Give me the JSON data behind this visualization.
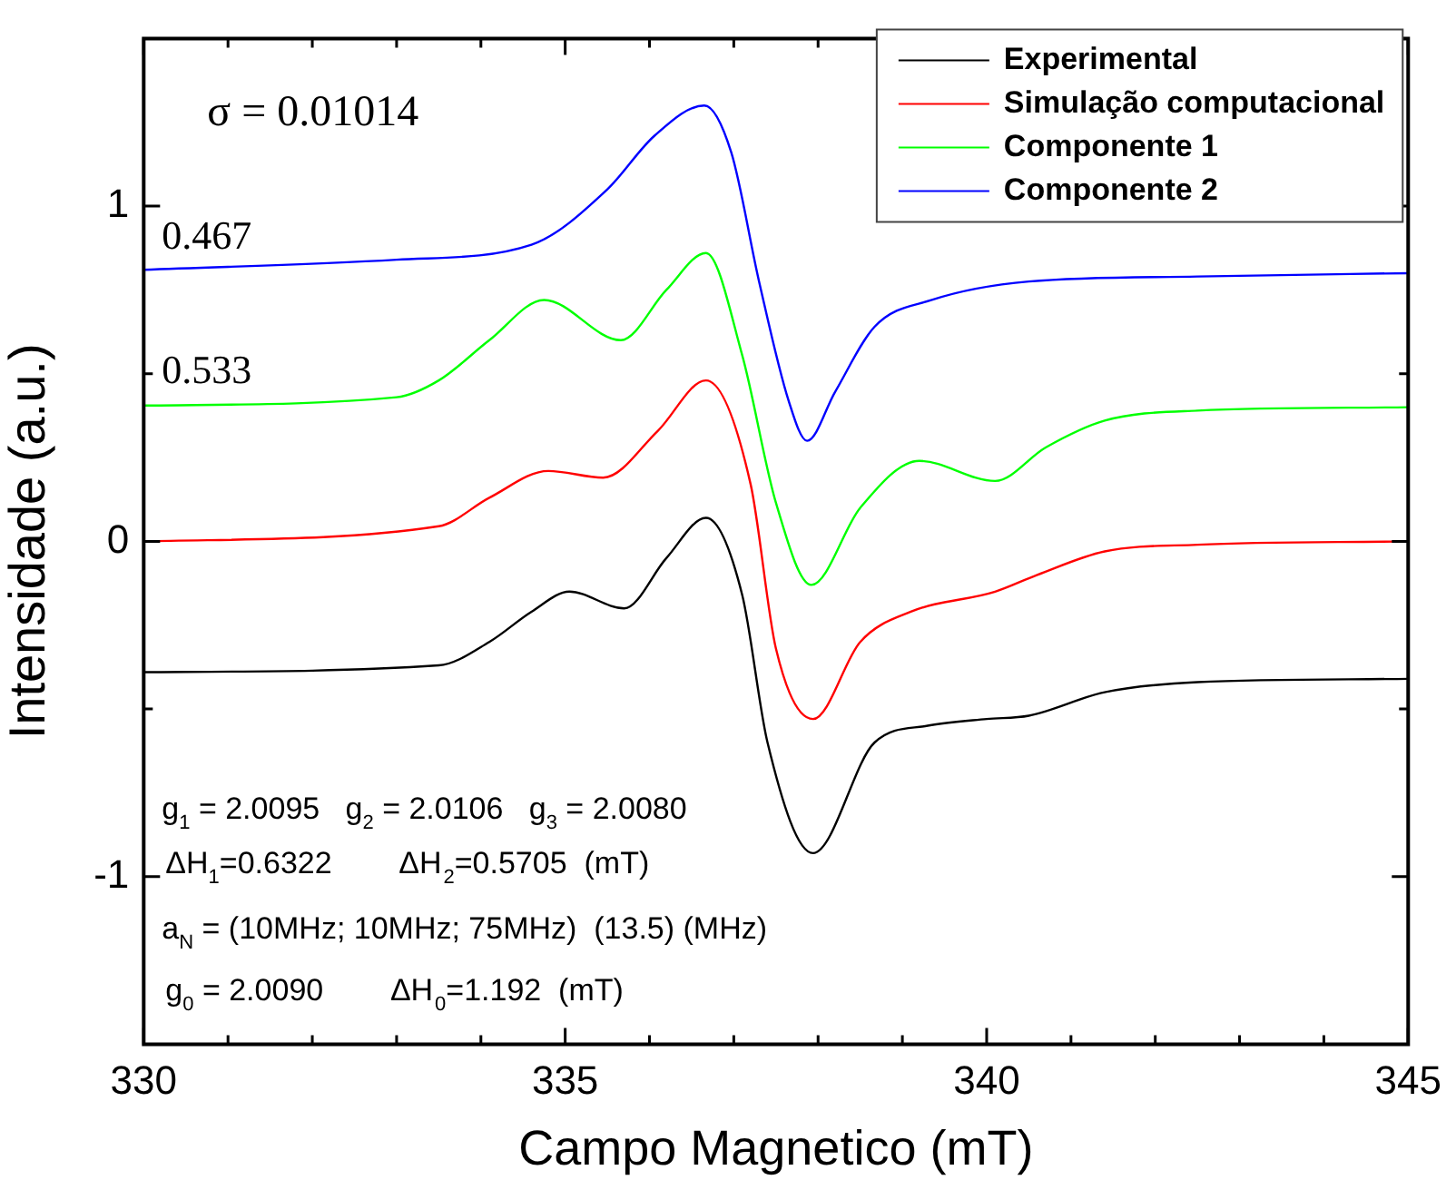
{
  "chart_data": {
    "type": "line",
    "xlabel": "Campo Magnetico (mT)",
    "ylabel": "Intensidade (a.u.)",
    "xlim": [
      330,
      345
    ],
    "ylim": [
      -1.5,
      1.5
    ],
    "xticks": [
      330,
      {
        "value": 331,
        "label": null
      },
      {
        "value": 332,
        "label": null
      },
      {
        "value": 333,
        "label": null
      },
      {
        "value": 334,
        "label": null
      },
      335,
      {
        "value": 336,
        "label": null
      },
      {
        "value": 337,
        "label": null
      },
      {
        "value": 338,
        "label": null
      },
      {
        "value": 339,
        "label": null
      },
      340,
      {
        "value": 341,
        "label": null
      },
      {
        "value": 342,
        "label": null
      },
      {
        "value": 343,
        "label": null
      },
      {
        "value": 344,
        "label": null
      },
      345
    ],
    "yticks": [
      {
        "value": -1.5,
        "label": null
      },
      -1,
      {
        "value": -0.5,
        "label": null
      },
      0,
      {
        "value": 0.5,
        "label": null
      },
      1,
      {
        "value": 1.5,
        "label": null
      }
    ],
    "grid": false,
    "legend": "top right",
    "marker": "none",
    "line_style": "solid",
    "annotations": [
      "σ = 0.01014",
      "0.467",
      "0.533",
      "g$_{1}$ = 2.0095   g$_{2}$ = 2.0106   g$_{3}$ = 2.0080",
      "ΔH$_{1}$=0.6322        ΔH$_{2}$=0.5705  (mT)",
      "a$_{N}$ = (10MHz; 10MHz; 75MHz)  (13.5) (MHz)",
      "g$_{0}$ = 2.0090        ΔH$_{0}$=1.192  (mT)"
    ],
    "series": [
      {
        "name": "Experimental",
        "color": "#000000",
        "x": [
          330,
          333.5,
          334.1,
          334.6,
          335.05,
          335.7,
          336.2,
          336.67,
          337.1,
          337.4,
          337.94,
          338.67,
          339.3,
          340.0,
          340.5,
          341.4,
          342.5,
          345
        ],
        "values": [
          -0.39,
          -0.37,
          -0.3,
          -0.21,
          -0.15,
          -0.2,
          -0.05,
          0.07,
          -0.16,
          -0.6,
          -0.93,
          -0.6,
          -0.55,
          -0.53,
          -0.52,
          -0.45,
          -0.42,
          -0.41
        ]
      },
      {
        "name": "Simulação computacional",
        "color": "#ff0000",
        "x": [
          330,
          333.5,
          334.1,
          334.8,
          335.45,
          336.1,
          336.67,
          337.2,
          337.5,
          337.94,
          338.5,
          339.1,
          340.1,
          340.6,
          341.4,
          342.5,
          345
        ],
        "values": [
          0,
          0.045,
          0.13,
          0.21,
          0.19,
          0.33,
          0.48,
          0.17,
          -0.32,
          -0.53,
          -0.3,
          -0.21,
          -0.15,
          -0.1,
          -0.03,
          -0.01,
          0
        ]
      },
      {
        "name": "Componente 1",
        "color": "#00ff00",
        "x": [
          330,
          333,
          333.5,
          334.1,
          334.75,
          335.66,
          336.2,
          336.67,
          337.1,
          337.5,
          337.92,
          338.5,
          339.2,
          340.1,
          340.7,
          341.4,
          342.5,
          345
        ],
        "values": [
          0.405,
          0.43,
          0.48,
          0.6,
          0.72,
          0.6,
          0.75,
          0.86,
          0.555,
          0.115,
          -0.13,
          0.1,
          0.24,
          0.18,
          0.28,
          0.36,
          0.39,
          0.4
        ]
      },
      {
        "name": "Componente 2",
        "color": "#0000ff",
        "x": [
          330,
          333,
          334.6,
          335.5,
          336.06,
          336.65,
          336.97,
          337.3,
          337.65,
          337.87,
          338.2,
          338.67,
          339.35,
          340.5,
          342.5,
          345
        ],
        "values": [
          0.81,
          0.84,
          0.885,
          1.05,
          1.21,
          1.3,
          1.16,
          0.775,
          0.42,
          0.3,
          0.445,
          0.64,
          0.72,
          0.775,
          0.79,
          0.8
        ]
      }
    ]
  }
}
